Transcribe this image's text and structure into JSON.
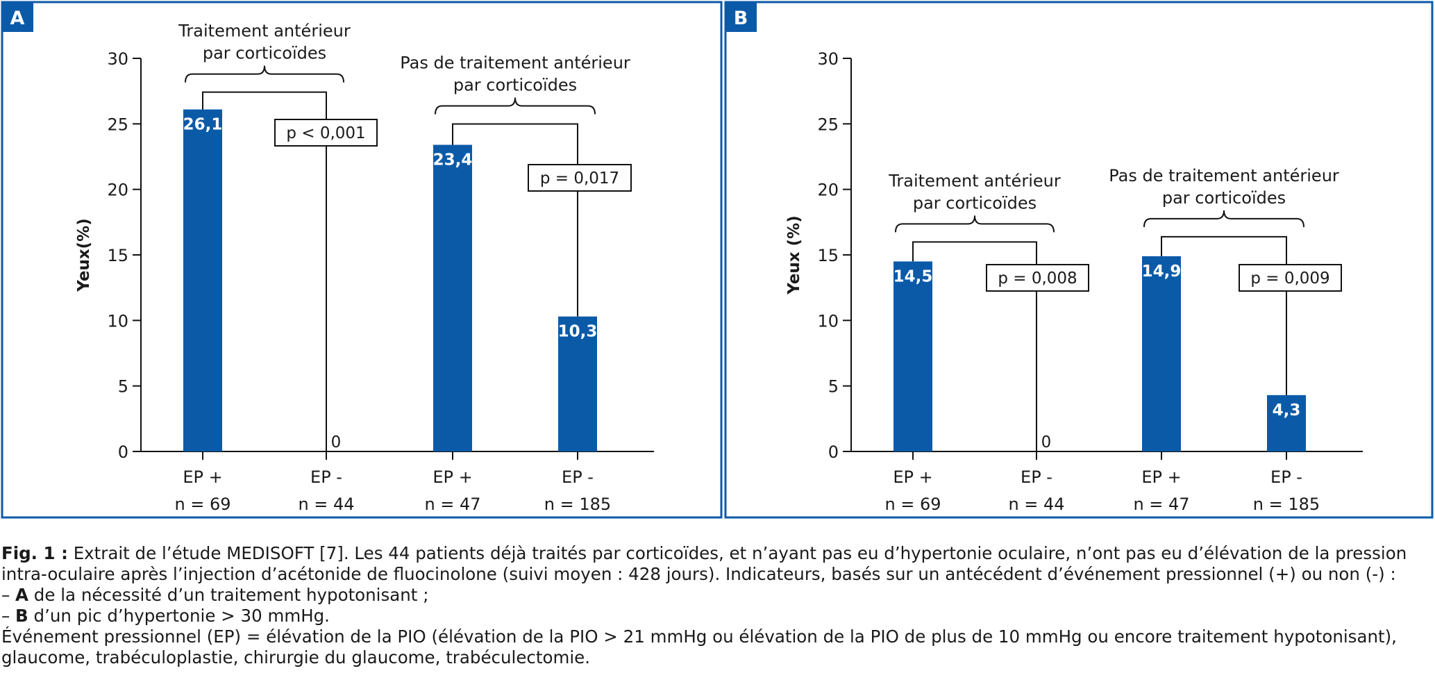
{
  "panels": [
    {
      "id": "A",
      "ylabel": "Yeux(%)",
      "ylim": [
        0,
        30
      ],
      "yticks": [
        0,
        5,
        10,
        15,
        20,
        25,
        30
      ],
      "groups": [
        {
          "label": [
            "Traitement antérieur",
            "par corticoïdes"
          ],
          "pvalue": "p < 0,001"
        },
        {
          "label": [
            "Pas de traitement antérieur",
            "par corticoïdes"
          ],
          "pvalue": "p = 0,017"
        }
      ],
      "bars": [
        {
          "category": [
            "EP +",
            "n = 69"
          ],
          "value": 26.1,
          "label": "26,1"
        },
        {
          "category": [
            "EP -",
            "n = 44"
          ],
          "value": 0,
          "label": "0"
        },
        {
          "category": [
            "EP +",
            "n = 47"
          ],
          "value": 23.4,
          "label": "23,4"
        },
        {
          "category": [
            "EP -",
            "n = 185"
          ],
          "value": 10.3,
          "label": "10,3"
        }
      ]
    },
    {
      "id": "B",
      "ylabel": "Yeux (%)",
      "ylim": [
        0,
        30
      ],
      "yticks": [
        0,
        5,
        10,
        15,
        20,
        25,
        30
      ],
      "groups": [
        {
          "label": [
            "Traitement antérieur",
            "par corticoïdes"
          ],
          "pvalue": "p = 0,008"
        },
        {
          "label": [
            "Pas de traitement antérieur",
            "par corticoïdes"
          ],
          "pvalue": "p = 0,009"
        }
      ],
      "bars": [
        {
          "category": [
            "EP +",
            "n = 69"
          ],
          "value": 14.5,
          "label": "14,5"
        },
        {
          "category": [
            "EP -",
            "n = 44"
          ],
          "value": 0,
          "label": "0"
        },
        {
          "category": [
            "EP +",
            "n = 47"
          ],
          "value": 14.9,
          "label": "14,9"
        },
        {
          "category": [
            "EP -",
            "n = 185"
          ],
          "value": 4.3,
          "label": "4,3"
        }
      ]
    }
  ],
  "chart_data": [
    {
      "type": "bar",
      "panel": "A",
      "ylabel": "Yeux(%)",
      "ylim": [
        0,
        30
      ],
      "categories": [
        "EP + n = 69",
        "EP - n = 44",
        "EP + n = 47",
        "EP - n = 185"
      ],
      "values": [
        26.1,
        0,
        23.4,
        10.3
      ],
      "groups": [
        "Traitement antérieur par corticoïdes",
        "Pas de traitement antérieur par corticoïdes"
      ],
      "pvalues": [
        "p < 0,001",
        "p = 0,017"
      ],
      "grid": false
    },
    {
      "type": "bar",
      "panel": "B",
      "ylabel": "Yeux (%)",
      "ylim": [
        0,
        30
      ],
      "categories": [
        "EP + n = 69",
        "EP - n = 44",
        "EP + n = 47",
        "EP - n = 185"
      ],
      "values": [
        14.5,
        0,
        14.9,
        4.3
      ],
      "groups": [
        "Traitement antérieur par corticoïdes",
        "Pas de traitement antérieur par corticoïdes"
      ],
      "pvalues": [
        "p = 0,008",
        "p = 0,009"
      ],
      "grid": false
    }
  ],
  "caption": {
    "fig_label": "Fig. 1 :",
    "line1": "Extrait de l’étude MEDISOFT [7]. Les 44 patients déjà traités par corticoïdes, et n’ayant pas eu d’hypertonie oculaire, n’ont pas eu d’élévation de la pression",
    "line2": "intra-oculaire après l’injection d’acétonide de fluocinolone (suivi moyen : 428 jours). Indicateurs, basés sur un antécédent d’événement pressionnel (+) ou non (-) :",
    "item_a_prefix": "– ",
    "item_a_bold": "A",
    "item_a_text": " de la nécessité d’un traitement hypotonisant ;",
    "item_b_prefix": "– ",
    "item_b_bold": "B",
    "item_b_text": " d’un pic d’hypertonie > 30 mmHg.",
    "line5": "Événement pressionnel (EP) = élévation de la PIO (élévation de la PIO > 21 mmHg ou élévation de la PIO de plus de 10 mmHg ou encore traitement hypotonisant),",
    "line6": "glaucome, trabéculoplastie, chirurgie du glaucome, trabéculectomie."
  },
  "colors": {
    "bar": "#0b5aa8",
    "frame": "#0b5aa8",
    "badge": "#0b5aa8"
  }
}
